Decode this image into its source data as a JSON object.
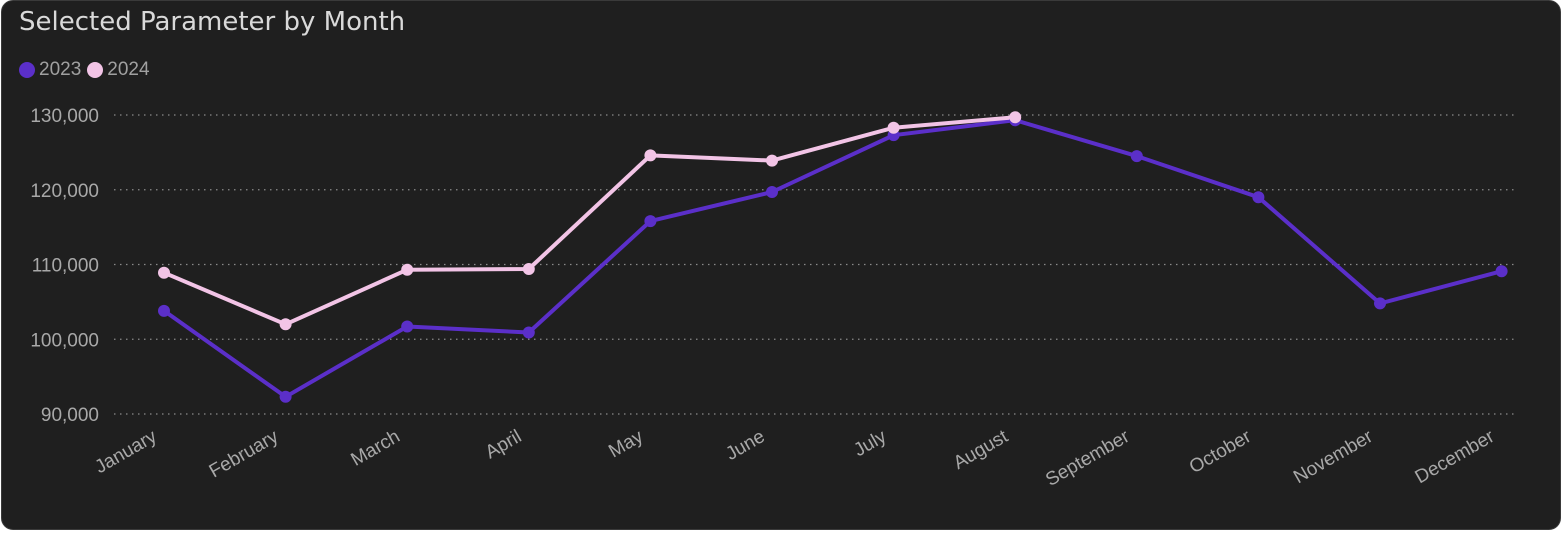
{
  "chart_data": {
    "type": "line",
    "title": "Selected Parameter by Month",
    "xlabel": "",
    "ylabel": "",
    "categories": [
      "January",
      "February",
      "March",
      "April",
      "May",
      "June",
      "July",
      "August",
      "September",
      "October",
      "November",
      "December"
    ],
    "ylim": [
      90000,
      130000
    ],
    "yticks": [
      90000,
      100000,
      110000,
      120000,
      130000
    ],
    "ytick_labels": [
      "90,000",
      "100,000",
      "110,000",
      "120,000",
      "130,000"
    ],
    "grid": true,
    "legend_position": "top-left",
    "series": [
      {
        "name": "2023",
        "color": "#5b2fc9",
        "values": [
          103800,
          92300,
          101700,
          100900,
          115800,
          119700,
          127300,
          129300,
          124500,
          119000,
          104800,
          109100
        ]
      },
      {
        "name": "2024",
        "color": "#f2c4e6",
        "values": [
          108900,
          102000,
          109300,
          109400,
          124600,
          123900,
          128300,
          129700,
          null,
          null,
          null,
          null
        ]
      }
    ]
  },
  "colors": {
    "background": "#1f1f1f",
    "grid": "#8a8a8a",
    "text": "#a8a8a8",
    "title": "#d9d9d9"
  }
}
